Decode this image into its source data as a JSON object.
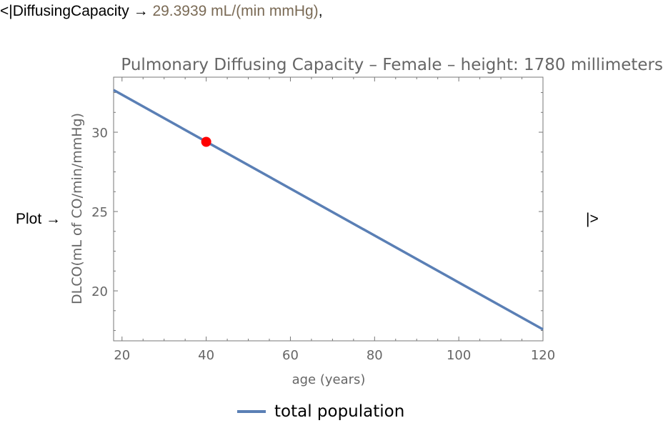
{
  "association": {
    "open": "<|",
    "key": "DiffusingCapacity",
    "arrow": "→",
    "value": "29.3939 mL/(min mmHg)",
    "separator": ",",
    "plot_key": "Plot",
    "close": "|>"
  },
  "chart_data": {
    "type": "line",
    "title": "Pulmonary Diffusing Capacity – Female – height: 1780 millimeters",
    "xlabel": "age (years)",
    "ylabel": "DLCO(mL of CO/min/mmHg)",
    "xlim": [
      18,
      120
    ],
    "ylim": [
      16.85,
      33.47
    ],
    "xticks": [
      20,
      40,
      60,
      80,
      100,
      120
    ],
    "yticks": [
      20,
      25,
      30
    ],
    "series": [
      {
        "name": "total population",
        "x": [
          18,
          120
        ],
        "y": [
          32.66,
          17.57
        ],
        "color": "#5a7fb5"
      }
    ],
    "highlight_point": {
      "x": 40,
      "y": 29.3939,
      "color": "#ff0000"
    },
    "legend": "bottom",
    "grid": false
  }
}
